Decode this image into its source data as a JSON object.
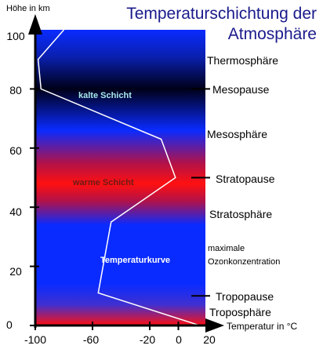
{
  "title": {
    "line1": "Temperaturschichtung der",
    "line2": "Atmosphäre"
  },
  "y_axis_label": "Höhe in km",
  "x_axis_label": "Temperatur  in °C",
  "y_ticks": [
    "100",
    "80",
    "60",
    "40",
    "20",
    "0"
  ],
  "x_ticks": [
    "-100",
    "-60",
    "-20",
    "0",
    "20"
  ],
  "layers": {
    "thermosphere": "Thermosphäre",
    "mesopause": "Mesopause",
    "mesosphere": "Mesosphäre",
    "stratopause": "Stratopause",
    "stratosphere": "Stratosphäre",
    "ozone_line1": "maximale",
    "ozone_line2": "Ozonkonzentration",
    "tropopause": "Tropopause",
    "troposphere": "Troposphäre"
  },
  "inner_labels": {
    "cold": "kalte Schicht",
    "warm": "warme Schicht",
    "curve": "Temperaturkurve"
  },
  "colors": {
    "blue": "#0a2bff",
    "navy": "#000018",
    "red": "#ff1010",
    "curve": "#ffffff",
    "cold_label": "#a9e8e8",
    "warm_label": "#6a1a1a",
    "curve_label": "#ffffff"
  },
  "chart_data": {
    "type": "line",
    "x_unit": "°C",
    "y_unit": "km",
    "xlim": [
      -100,
      20
    ],
    "ylim": [
      0,
      100
    ],
    "temperature_curve": [
      {
        "temp": 15,
        "alt": 0
      },
      {
        "temp": -56,
        "alt": 11
      },
      {
        "temp": -47,
        "alt": 35
      },
      {
        "temp": -2,
        "alt": 50
      },
      {
        "temp": -12,
        "alt": 63
      },
      {
        "temp": -96,
        "alt": 80
      },
      {
        "temp": -98,
        "alt": 90
      },
      {
        "temp": -80,
        "alt": 100
      }
    ],
    "boundaries_km": {
      "tropopause": 10,
      "stratopause": 50,
      "mesopause": 80
    }
  }
}
